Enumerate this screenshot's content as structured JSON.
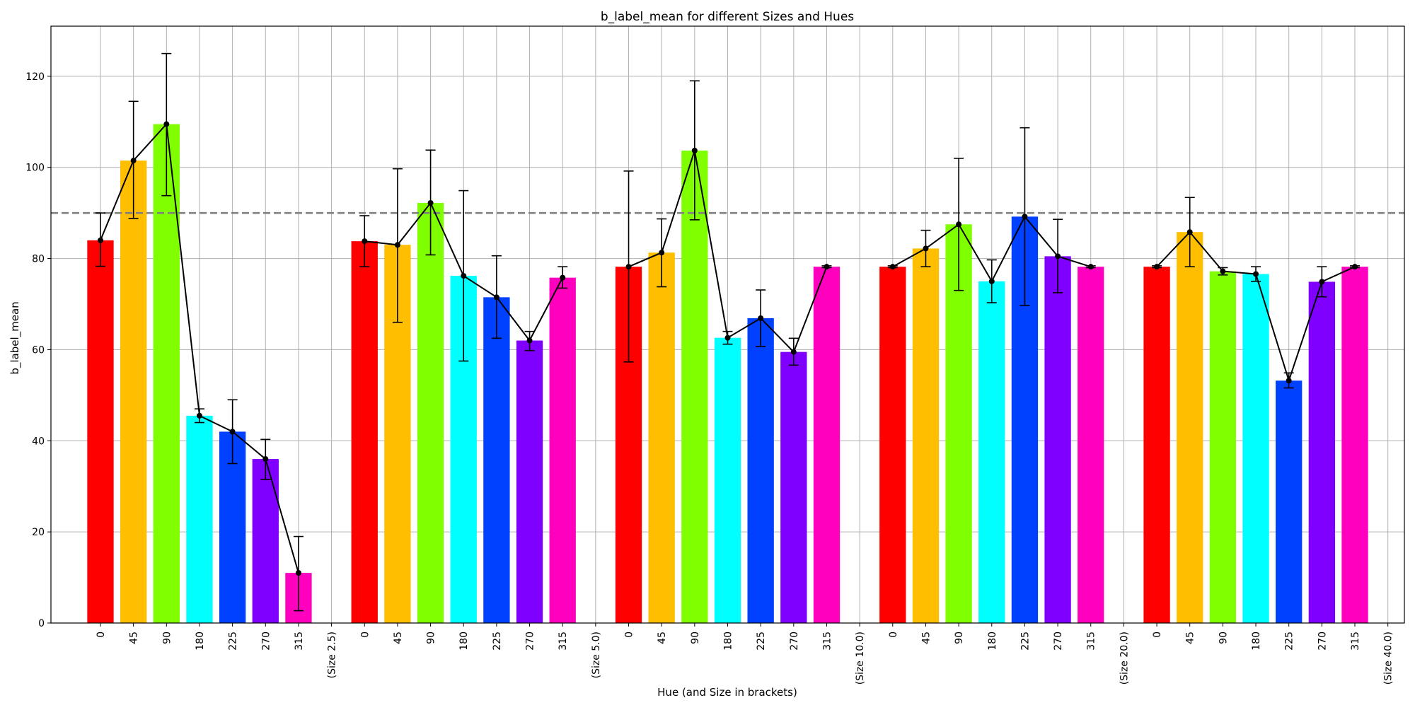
{
  "chart_data": {
    "type": "bar",
    "title": "b_label_mean for different Sizes and Hues",
    "xlabel": "Hue (and Size in brackets)",
    "ylabel": "b_label_mean",
    "ylim": [
      0,
      131
    ],
    "yticks": [
      0,
      20,
      40,
      60,
      80,
      100,
      120
    ],
    "grid": true,
    "reference_line": {
      "y": 90,
      "style": "dashed",
      "color": "#808080"
    },
    "hue_colors": {
      "0": "#ff0000",
      "45": "#ffbf00",
      "90": "#80ff00",
      "180": "#00ffff",
      "225": "#0040ff",
      "270": "#8000ff",
      "315": "#ff00bf"
    },
    "x_labels": [
      "0",
      "45",
      "90",
      "180",
      "225",
      "270",
      "315",
      "(Size 2.5)",
      "0",
      "45",
      "90",
      "180",
      "225",
      "270",
      "315",
      "(Size 5.0)",
      "0",
      "45",
      "90",
      "180",
      "225",
      "270",
      "315",
      "(Size 10.0)",
      "0",
      "45",
      "90",
      "180",
      "225",
      "270",
      "315",
      "(Size 20.0)",
      "0",
      "45",
      "90",
      "180",
      "225",
      "270",
      "315",
      "(Size 40.0)"
    ],
    "groups": [
      {
        "size_label": "(Size 2.5)",
        "hues": [
          "0",
          "45",
          "90",
          "180",
          "225",
          "270",
          "315"
        ],
        "values": [
          84.0,
          101.5,
          109.5,
          45.5,
          42.0,
          36.0,
          11.0
        ],
        "err_low": [
          78.3,
          88.8,
          93.8,
          44.0,
          35.0,
          31.5,
          2.7
        ],
        "err_high": [
          90.0,
          114.5,
          125.0,
          47.0,
          49.0,
          40.3,
          19.0
        ]
      },
      {
        "size_label": "(Size 5.0)",
        "hues": [
          "0",
          "45",
          "90",
          "180",
          "225",
          "270",
          "315"
        ],
        "values": [
          83.8,
          83.0,
          92.2,
          76.2,
          71.5,
          62.0,
          75.8
        ],
        "err_low": [
          78.2,
          66.0,
          80.8,
          57.5,
          62.5,
          59.8,
          73.5
        ],
        "err_high": [
          89.4,
          99.7,
          103.8,
          94.9,
          80.6,
          64.0,
          78.2
        ]
      },
      {
        "size_label": "(Size 10.0)",
        "hues": [
          "0",
          "45",
          "90",
          "180",
          "225",
          "270",
          "315"
        ],
        "values": [
          78.2,
          81.3,
          103.7,
          62.6,
          66.9,
          59.5,
          78.2
        ],
        "err_low": [
          57.3,
          73.8,
          88.5,
          61.2,
          60.7,
          56.6,
          78.0
        ],
        "err_high": [
          99.2,
          88.7,
          119.0,
          64.0,
          73.1,
          62.5,
          78.4
        ]
      },
      {
        "size_label": "(Size 20.0)",
        "hues": [
          "0",
          "45",
          "90",
          "180",
          "225",
          "270",
          "315"
        ],
        "values": [
          78.2,
          82.2,
          87.5,
          75.0,
          89.2,
          80.5,
          78.2
        ],
        "err_low": [
          78.0,
          78.2,
          73.0,
          70.3,
          69.7,
          72.5,
          78.0
        ],
        "err_high": [
          78.4,
          86.2,
          102.0,
          79.7,
          108.7,
          88.6,
          78.4
        ]
      },
      {
        "size_label": "(Size 40.0)",
        "hues": [
          "0",
          "45",
          "90",
          "180",
          "225",
          "270",
          "315"
        ],
        "values": [
          78.2,
          85.8,
          77.2,
          76.6,
          53.2,
          74.9,
          78.2
        ],
        "err_low": [
          78.0,
          78.2,
          76.4,
          75.0,
          51.6,
          71.6,
          78.0
        ],
        "err_high": [
          78.4,
          93.4,
          78.0,
          78.2,
          54.9,
          78.2,
          78.4
        ]
      }
    ]
  }
}
